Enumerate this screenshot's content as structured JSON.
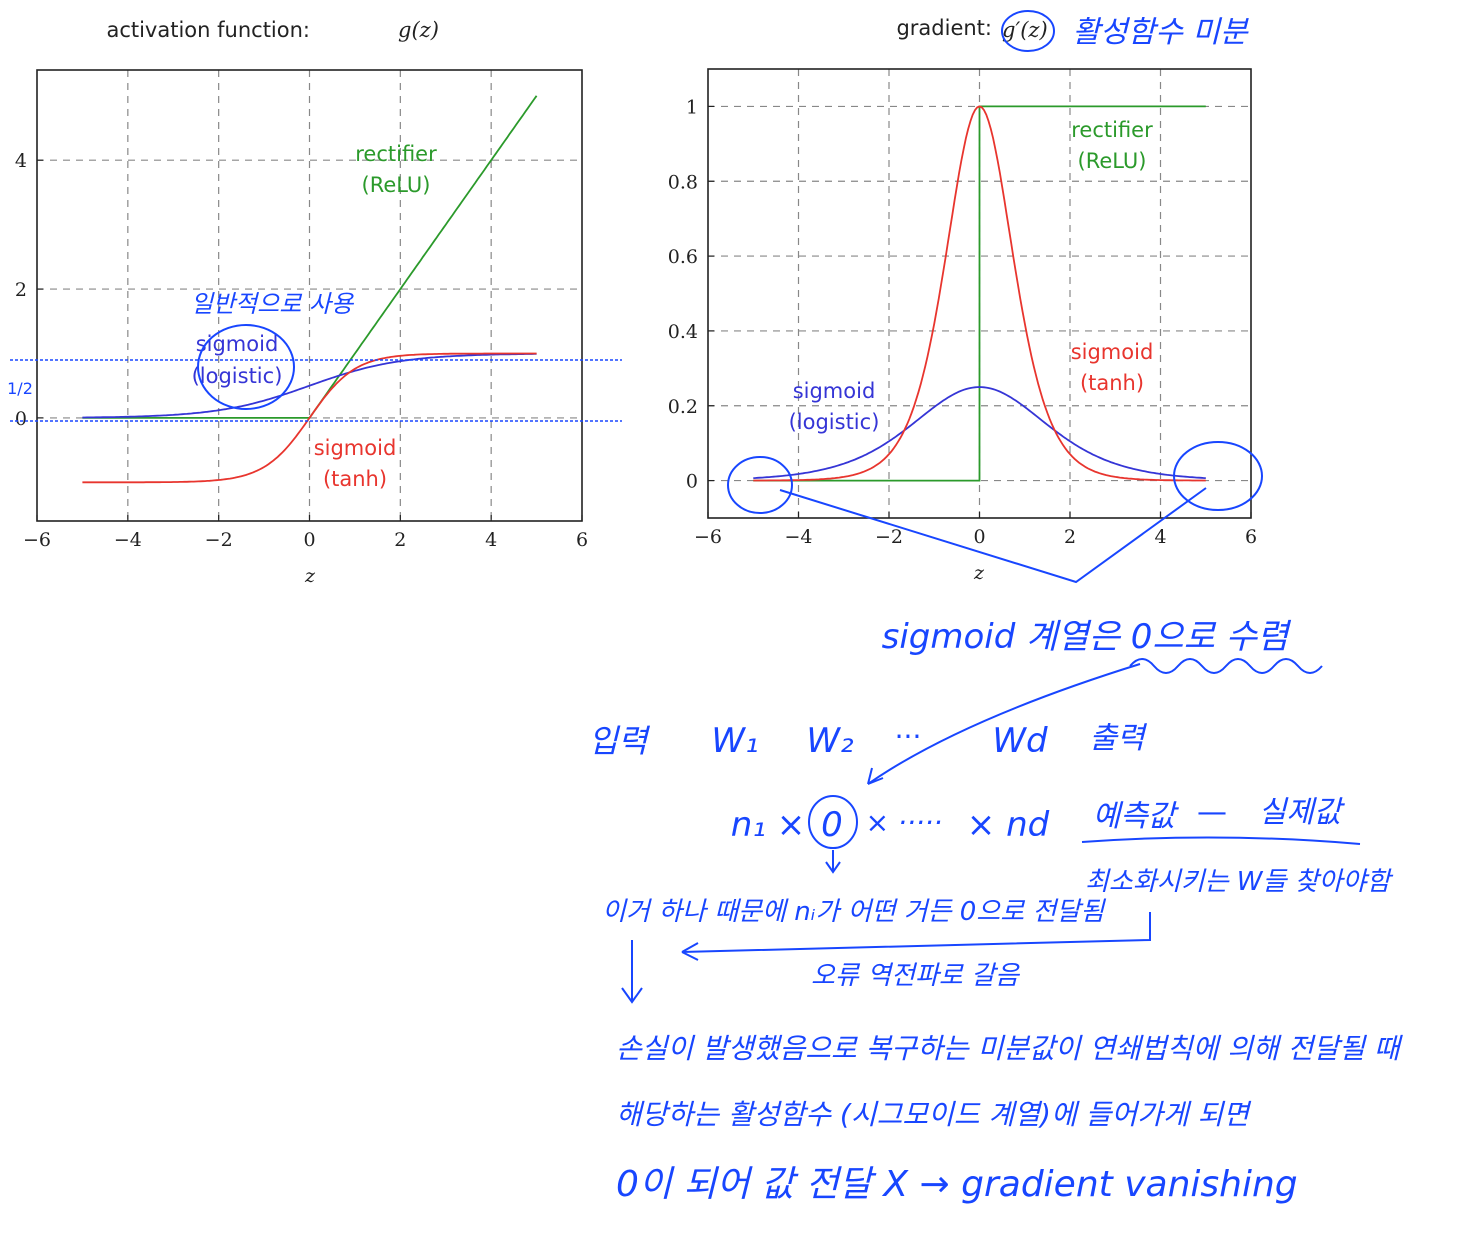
{
  "colors": {
    "relu": "#2b9a2b",
    "tanh": "#e8352e",
    "logistic": "#3535d6",
    "ink": "#1846ff",
    "grid": "#888888"
  },
  "left_chart": {
    "title": "activation function: ",
    "title_math": "g(z)",
    "xlabel": "z",
    "label_relu": [
      "rectifier",
      "(ReLU)"
    ],
    "label_logistic": [
      "sigmoid",
      "(logistic)"
    ],
    "label_tanh": [
      "sigmoid",
      "(tanh)"
    ]
  },
  "right_chart": {
    "title": "gradient: ",
    "title_math": "g′(z)",
    "xlabel": "z",
    "label_relu": [
      "rectifier",
      "(ReLU)"
    ],
    "label_logistic": [
      "sigmoid",
      "(logistic)"
    ],
    "label_tanh": [
      "sigmoid",
      "(tanh)"
    ]
  },
  "chart_data": [
    {
      "type": "line",
      "title": "activation function: g(z)",
      "xlabel": "z",
      "ylabel": "",
      "xlim": [
        -6,
        6
      ],
      "ylim": [
        -1.6,
        5.4
      ],
      "xticks": [
        -6,
        -4,
        -2,
        0,
        2,
        4,
        6
      ],
      "yticks": [
        0,
        2,
        4
      ],
      "grid": true,
      "x_domain": [
        -5,
        5
      ],
      "series": [
        {
          "name": "rectifier (ReLU)",
          "function": "max(0, z)",
          "x": [
            -5,
            -4,
            -3,
            -2,
            -1,
            0,
            1,
            2,
            3,
            4,
            5
          ],
          "y": [
            0,
            0,
            0,
            0,
            0,
            0,
            1,
            2,
            3,
            4,
            5
          ]
        },
        {
          "name": "sigmoid (logistic)",
          "function": "1 / (1 + exp(-z))",
          "x": [
            -5,
            -4,
            -3,
            -2,
            -1,
            0,
            1,
            2,
            3,
            4,
            5
          ],
          "y": [
            0.007,
            0.018,
            0.047,
            0.119,
            0.269,
            0.5,
            0.731,
            0.881,
            0.953,
            0.982,
            0.993
          ]
        },
        {
          "name": "sigmoid (tanh)",
          "function": "tanh(z)",
          "x": [
            -5,
            -4,
            -3,
            -2,
            -1,
            0,
            1,
            2,
            3,
            4,
            5
          ],
          "y": [
            -1,
            -0.999,
            -0.995,
            -0.964,
            -0.762,
            0,
            0.762,
            0.964,
            0.995,
            0.999,
            1
          ]
        }
      ]
    },
    {
      "type": "line",
      "title": "gradient: g′(z)",
      "xlabel": "z",
      "ylabel": "",
      "xlim": [
        -6,
        6
      ],
      "ylim": [
        -0.1,
        1.1
      ],
      "xticks": [
        -6,
        -4,
        -2,
        0,
        2,
        4,
        6
      ],
      "yticks": [
        0,
        0.2,
        0.4,
        0.6,
        0.8,
        1
      ],
      "grid": true,
      "x_domain": [
        -5,
        5
      ],
      "series": [
        {
          "name": "rectifier (ReLU)",
          "function": "z < 0 ? 0 : 1",
          "x": [
            -5,
            0,
            0,
            5
          ],
          "y": [
            0,
            0,
            1,
            1
          ]
        },
        {
          "name": "sigmoid (logistic)",
          "function": "s(z)(1 - s(z))",
          "x": [
            -5,
            -4,
            -3,
            -2,
            -1,
            0,
            1,
            2,
            3,
            4,
            5
          ],
          "y": [
            0.007,
            0.018,
            0.045,
            0.105,
            0.197,
            0.25,
            0.197,
            0.105,
            0.045,
            0.018,
            0.007
          ]
        },
        {
          "name": "sigmoid (tanh)",
          "function": "1 - tanh(z)^2",
          "x": [
            -5,
            -4,
            -3,
            -2,
            -1,
            0,
            1,
            2,
            3,
            4,
            5
          ],
          "y": [
            0,
            0.001,
            0.01,
            0.071,
            0.42,
            1,
            0.42,
            0.071,
            0.01,
            0.001,
            0
          ]
        }
      ]
    }
  ],
  "notes": {
    "title_note": "활성함수 미분",
    "left_note": "일반적으로 사용",
    "half_mark": "1/2",
    "converge": "sigmoid 계열은 0으로 수렴",
    "row1": {
      "input": "입력",
      "w1": "W₁",
      "w2": "W₂",
      "dots": "···",
      "wd": "Wd",
      "output": "출력"
    },
    "row2": {
      "n1": "n₁ ×",
      "zero": "0",
      "mid": "× ·····",
      "nd": "× nd",
      "pred": "예측값",
      "minus": "—",
      "actual": "실제값"
    },
    "line_a": "이거 하나 때문에 nᵢ가 어떤 거든 0으로 전달됨",
    "line_b": "최소화시키는 W들 찾아야함",
    "line_c": "오류 역전파로 갈음",
    "line_d": "손실이 발생했음으로 복구하는 미분값이 연쇄법칙에 의해 전달될 때",
    "line_e": "해당하는 활성함수 (시그모이드 계열)에 들어가게 되면",
    "line_f": "0이 되어 값 전달 X → gradient vanishing"
  }
}
